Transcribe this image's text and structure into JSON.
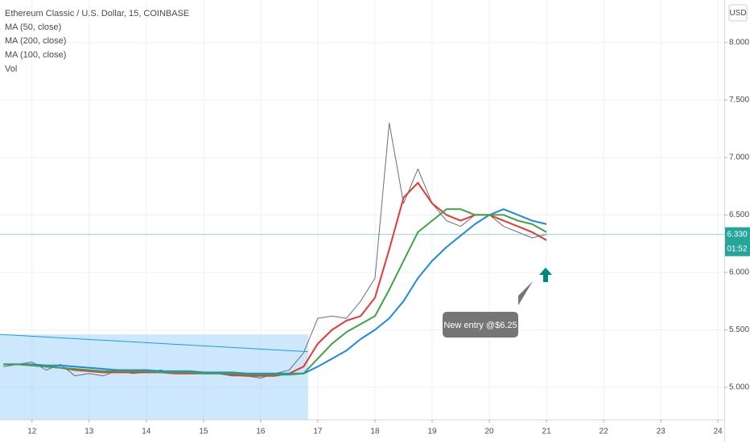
{
  "chart_data": {
    "type": "line",
    "title": "Ethereum Classic / U.S. Dollar, 15, COINBASE",
    "currency": "USD",
    "x": [
      11.5,
      11.75,
      12,
      12.25,
      12.5,
      12.75,
      13,
      13.25,
      13.5,
      13.75,
      14,
      14.25,
      14.5,
      14.75,
      15,
      15.25,
      15.5,
      15.75,
      16,
      16.25,
      16.5,
      16.75,
      17,
      17.25,
      17.5,
      17.75,
      18,
      18.25,
      18.5,
      18.75,
      19,
      19.25,
      19.5,
      19.75,
      20,
      20.25,
      20.5,
      20.75,
      21
    ],
    "price": {
      "color": "#6b6f7a",
      "values": [
        5.18,
        5.2,
        5.22,
        5.15,
        5.2,
        5.1,
        5.12,
        5.1,
        5.15,
        5.12,
        5.13,
        5.15,
        5.12,
        5.12,
        5.13,
        5.12,
        5.1,
        5.1,
        5.08,
        5.12,
        5.15,
        5.3,
        5.6,
        5.62,
        5.6,
        5.75,
        5.95,
        7.3,
        6.6,
        6.9,
        6.6,
        6.45,
        6.4,
        6.5,
        6.5,
        6.4,
        6.35,
        6.3,
        6.33
      ]
    },
    "series": [
      {
        "name": "MA (50, close)",
        "color": "#e53935",
        "values": [
          5.2,
          5.2,
          5.19,
          5.18,
          5.17,
          5.15,
          5.14,
          5.13,
          5.13,
          5.13,
          5.13,
          5.13,
          5.12,
          5.12,
          5.12,
          5.12,
          5.11,
          5.1,
          5.1,
          5.1,
          5.12,
          5.18,
          5.38,
          5.5,
          5.58,
          5.62,
          5.78,
          6.2,
          6.65,
          6.78,
          6.6,
          6.5,
          6.45,
          6.5,
          6.5,
          6.45,
          6.4,
          6.35,
          6.28
        ]
      },
      {
        "name": "MA (200, close)",
        "color": "#1e88e5",
        "values": [
          5.2,
          5.2,
          5.2,
          5.19,
          5.19,
          5.18,
          5.17,
          5.16,
          5.15,
          5.15,
          5.15,
          5.14,
          5.14,
          5.14,
          5.13,
          5.13,
          5.13,
          5.12,
          5.12,
          5.12,
          5.12,
          5.12,
          5.18,
          5.25,
          5.32,
          5.42,
          5.5,
          5.6,
          5.75,
          5.95,
          6.1,
          6.22,
          6.32,
          6.42,
          6.5,
          6.55,
          6.5,
          6.45,
          6.42
        ]
      },
      {
        "name": "MA (100, close)",
        "color": "#43a047",
        "values": [
          5.2,
          5.2,
          5.19,
          5.18,
          5.17,
          5.16,
          5.15,
          5.14,
          5.14,
          5.14,
          5.14,
          5.13,
          5.13,
          5.13,
          5.12,
          5.12,
          5.12,
          5.11,
          5.11,
          5.11,
          5.11,
          5.12,
          5.25,
          5.38,
          5.48,
          5.55,
          5.62,
          5.85,
          6.1,
          6.35,
          6.45,
          6.55,
          6.55,
          6.5,
          6.5,
          6.5,
          6.45,
          6.42,
          6.35
        ]
      }
    ],
    "volume_label": "Vol",
    "xlim": [
      11.44,
      24.11
    ],
    "xticks": [
      12,
      13,
      14,
      15,
      16,
      17,
      18,
      19,
      20,
      21,
      22,
      23,
      24
    ],
    "ylim": [
      4.72,
      8.37
    ],
    "yticks": [
      {
        "value": 5,
        "label": "5.000"
      },
      {
        "value": 5.5,
        "label": "5.500"
      },
      {
        "value": 6,
        "label": "6.000"
      },
      {
        "value": 6.5,
        "label": "6.500"
      },
      {
        "value": 7,
        "label": "7.000"
      },
      {
        "value": 7.5,
        "label": "7.500"
      },
      {
        "value": 8,
        "label": "8.000"
      }
    ],
    "grid": true,
    "trendline": {
      "x": [
        11.44,
        16.83
      ],
      "y": [
        5.46,
        5.31
      ],
      "color": "#2196f3"
    },
    "range_box": {
      "x": [
        11.44,
        16.83
      ],
      "y": [
        4.72,
        5.46
      ],
      "color": "#90caf9"
    },
    "last_price": {
      "value": 6.33,
      "label": "6.330",
      "countdown": "01:52",
      "color": "#26a69a"
    },
    "annotation": "New entry @$6.25"
  }
}
